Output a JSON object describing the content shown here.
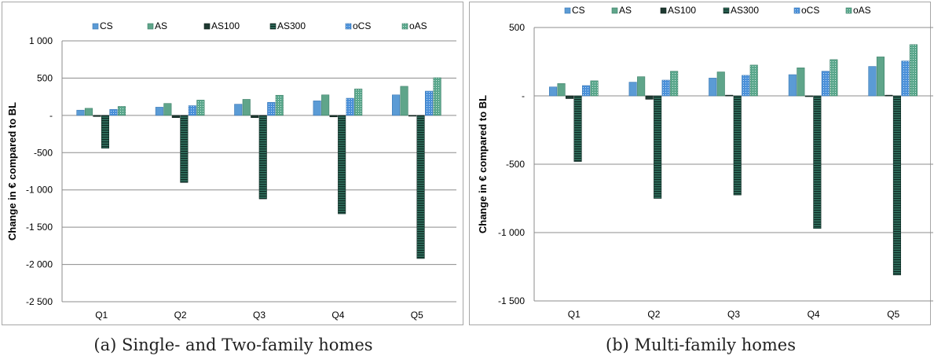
{
  "colors": {
    "CS": "#5b9bd5",
    "AS": "#5fa58a",
    "AS100": "#1f3a32",
    "AS300": "#2f6e5c",
    "oCS": "#4a90d9",
    "oAS": "#5aa78c"
  },
  "chart_data": [
    {
      "type": "bar",
      "caption": "(a) Single- and Two-family homes",
      "ylabel": "Change in € compared to BL",
      "ylim": [
        -2500,
        1000
      ],
      "yticks": [
        1000,
        500,
        0,
        -500,
        -1000,
        -1500,
        -2000,
        -2500
      ],
      "ytick_labels": [
        "1 000",
        "500",
        "-",
        "-500",
        "-1 000",
        "-1 500",
        "-2 000",
        "-2 500"
      ],
      "categories": [
        "Q1",
        "Q2",
        "Q3",
        "Q4",
        "Q5"
      ],
      "legend_position": "top",
      "grid": true,
      "series": [
        {
          "name": "CS",
          "values": [
            70,
            110,
            150,
            195,
            275
          ]
        },
        {
          "name": "AS",
          "values": [
            95,
            160,
            215,
            275,
            390
          ]
        },
        {
          "name": "AS100",
          "values": [
            -15,
            -30,
            -30,
            -20,
            -5
          ]
        },
        {
          "name": "AS300",
          "values": [
            -440,
            -900,
            -1120,
            -1320,
            -1920
          ]
        },
        {
          "name": "oCS",
          "values": [
            80,
            130,
            175,
            230,
            325
          ]
        },
        {
          "name": "oAS",
          "values": [
            120,
            205,
            270,
            355,
            505
          ]
        }
      ]
    },
    {
      "type": "bar",
      "caption": "(b) Multi-family homes",
      "ylabel": "Change in € compared to BL",
      "ylim": [
        -1500,
        500
      ],
      "yticks": [
        500,
        0,
        -500,
        -1000,
        -1500
      ],
      "ytick_labels": [
        "500",
        "-",
        "-500",
        "-1 000",
        "-1 500"
      ],
      "categories": [
        "Q1",
        "Q2",
        "Q3",
        "Q4",
        "Q5"
      ],
      "legend_position": "top",
      "grid": true,
      "series": [
        {
          "name": "CS",
          "values": [
            65,
            100,
            130,
            155,
            215
          ]
        },
        {
          "name": "AS",
          "values": [
            90,
            140,
            175,
            205,
            285
          ]
        },
        {
          "name": "AS100",
          "values": [
            -20,
            -25,
            5,
            -5,
            5
          ]
        },
        {
          "name": "AS300",
          "values": [
            -480,
            -750,
            -725,
            -970,
            -1310
          ]
        },
        {
          "name": "oCS",
          "values": [
            75,
            115,
            150,
            180,
            255
          ]
        },
        {
          "name": "oAS",
          "values": [
            110,
            180,
            225,
            265,
            375
          ]
        }
      ]
    }
  ]
}
